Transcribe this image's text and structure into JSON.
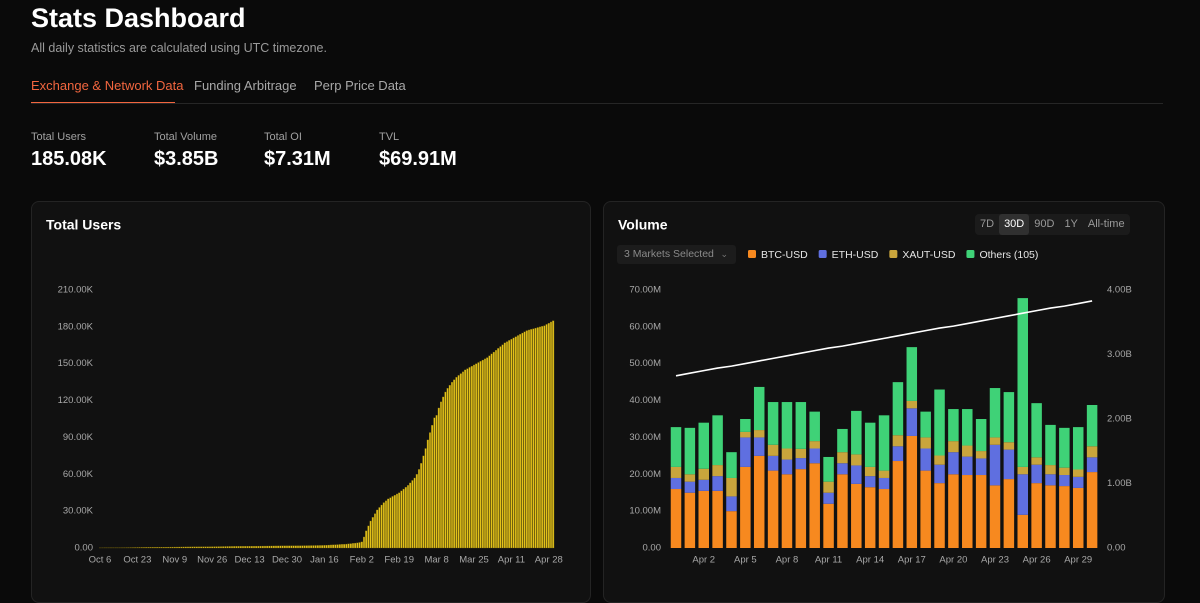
{
  "header": {
    "title": "Stats Dashboard",
    "subtitle": "All daily statistics are calculated using UTC timezone."
  },
  "tabs": [
    "Exchange & Network Data",
    "Funding Arbitrage",
    "Perp Price Data"
  ],
  "stats": [
    {
      "label": "Total Users",
      "value": "185.08K"
    },
    {
      "label": "Total Volume",
      "value": "$3.85B"
    },
    {
      "label": "Total OI",
      "value": "$7.31M"
    },
    {
      "label": "TVL",
      "value": "$69.91M"
    }
  ],
  "volume_controls": {
    "ranges": [
      "7D",
      "30D",
      "90D",
      "1Y",
      "All-time"
    ],
    "selected_range": "30D",
    "market_selector": "3 Markets Selected"
  },
  "chart_data": [
    {
      "type": "bar",
      "title": "Total Users",
      "color": "#e3c21a",
      "ylim": [
        0,
        210
      ],
      "yticks": [
        {
          "value": 0,
          "label": "0.00"
        },
        {
          "value": 30,
          "label": "30.00K"
        },
        {
          "value": 60,
          "label": "60.00K"
        },
        {
          "value": 90,
          "label": "90.00K"
        },
        {
          "value": 120,
          "label": "120.00K"
        },
        {
          "value": 150,
          "label": "150.00K"
        },
        {
          "value": 180,
          "label": "180.00K"
        },
        {
          "value": 210,
          "label": "210.00K"
        }
      ],
      "categories": [
        "Oct 6",
        null,
        null,
        null,
        null,
        null,
        null,
        null,
        null,
        null,
        null,
        null,
        null,
        null,
        null,
        null,
        null,
        "Oct 23",
        null,
        null,
        null,
        null,
        null,
        null,
        null,
        null,
        null,
        null,
        null,
        null,
        null,
        null,
        null,
        null,
        "Nov 9",
        null,
        null,
        null,
        null,
        null,
        null,
        null,
        null,
        null,
        null,
        null,
        null,
        null,
        null,
        null,
        null,
        "Nov 26",
        null,
        null,
        null,
        null,
        null,
        null,
        null,
        null,
        null,
        null,
        null,
        null,
        null,
        null,
        null,
        null,
        "Dec 13",
        null,
        null,
        null,
        null,
        null,
        null,
        null,
        null,
        null,
        null,
        null,
        null,
        null,
        null,
        null,
        null,
        "Dec 30",
        null,
        null,
        null,
        null,
        null,
        null,
        null,
        null,
        null,
        null,
        null,
        null,
        null,
        null,
        null,
        null,
        "Jan 16",
        null,
        null,
        null,
        null,
        null,
        null,
        null,
        null,
        null,
        null,
        null,
        null,
        null,
        null,
        null,
        null,
        "Feb 2",
        null,
        null,
        null,
        null,
        null,
        null,
        null,
        null,
        null,
        null,
        null,
        null,
        null,
        null,
        null,
        null,
        "Feb 19",
        null,
        null,
        null,
        null,
        null,
        null,
        null,
        null,
        null,
        null,
        null,
        null,
        null,
        null,
        null,
        null,
        "Mar 8",
        null,
        null,
        null,
        null,
        null,
        null,
        null,
        null,
        null,
        null,
        null,
        null,
        null,
        null,
        null,
        null,
        "Mar 25",
        null,
        null,
        null,
        null,
        null,
        null,
        null,
        null,
        null,
        null,
        null,
        null,
        null,
        null,
        null,
        null,
        "Apr 11",
        null,
        null,
        null,
        null,
        null,
        null,
        null,
        null,
        null,
        null,
        null,
        null,
        null,
        null,
        null,
        null,
        "Apr 28",
        null,
        null
      ],
      "values": [
        0.1,
        0.12,
        0.14,
        0.16,
        0.18,
        0.2,
        0.22,
        0.24,
        0.26,
        0.28,
        0.3,
        0.32,
        0.34,
        0.36,
        0.38,
        0.4,
        0.42,
        0.44,
        0.46,
        0.48,
        0.5,
        0.52,
        0.54,
        0.56,
        0.58,
        0.6,
        0.62,
        0.64,
        0.66,
        0.68,
        0.7,
        0.72,
        0.74,
        0.76,
        0.78,
        0.8,
        0.82,
        0.84,
        0.86,
        0.88,
        0.9,
        0.92,
        0.94,
        0.96,
        0.98,
        1,
        1.02,
        1.04,
        1.06,
        1.08,
        1.1,
        1.12,
        1.14,
        1.16,
        1.18,
        1.2,
        1.22,
        1.24,
        1.26,
        1.28,
        1.3,
        1.32,
        1.34,
        1.36,
        1.38,
        1.4,
        1.42,
        1.44,
        1.46,
        1.48,
        1.5,
        1.52,
        1.54,
        1.56,
        1.58,
        1.6,
        1.62,
        1.64,
        1.66,
        1.68,
        1.7,
        1.72,
        1.74,
        1.76,
        1.78,
        1.8,
        1.82,
        1.84,
        1.86,
        1.88,
        1.9,
        1.92,
        1.94,
        1.96,
        1.98,
        2,
        2.02,
        2.04,
        2.06,
        2.08,
        2.1,
        2.12,
        2.2,
        2.3,
        2.4,
        2.5,
        2.6,
        2.7,
        2.8,
        2.9,
        3,
        3.1,
        3.2,
        3.4,
        3.6,
        3.8,
        4,
        4.2,
        4.5,
        5,
        9,
        14,
        18,
        22,
        25,
        28,
        31,
        33,
        35,
        37,
        38.5,
        40,
        41,
        42,
        43,
        44,
        45,
        46.5,
        48,
        49.5,
        51,
        53,
        55,
        57,
        60,
        64,
        69,
        75,
        81,
        88,
        94,
        100,
        106,
        108,
        114,
        119,
        123,
        127,
        130,
        132.5,
        135,
        137,
        139,
        140.5,
        142,
        143.5,
        145,
        146,
        147,
        148,
        149,
        150,
        151,
        152,
        153,
        154,
        155,
        156.5,
        158,
        159.5,
        161,
        162.5,
        164,
        165.5,
        167,
        168,
        169,
        170,
        171,
        172,
        173,
        174,
        175,
        176,
        177,
        177.5,
        178,
        178.5,
        179,
        179.5,
        180,
        180.5,
        181,
        182,
        183,
        184,
        185
      ]
    },
    {
      "type": "stacked_bar",
      "title": "Volume",
      "ylim": [
        0,
        70
      ],
      "yticks": [
        {
          "value": 0,
          "label": "0.00"
        },
        {
          "value": 10,
          "label": "10.00M"
        },
        {
          "value": 20,
          "label": "20.00M"
        },
        {
          "value": 30,
          "label": "30.00M"
        },
        {
          "value": 40,
          "label": "40.00M"
        },
        {
          "value": 50,
          "label": "50.00M"
        },
        {
          "value": 60,
          "label": "60.00M"
        },
        {
          "value": 70,
          "label": "70.00M"
        }
      ],
      "y2lim": [
        0,
        4
      ],
      "y2ticks": [
        {
          "value": 0,
          "label": "0.00"
        },
        {
          "value": 1,
          "label": "1.00B"
        },
        {
          "value": 2,
          "label": "2.00B"
        },
        {
          "value": 3,
          "label": "3.00B"
        },
        {
          "value": 4,
          "label": "4.00B"
        }
      ],
      "categories": [
        null,
        null,
        "Apr 2",
        null,
        null,
        "Apr 5",
        null,
        null,
        "Apr 8",
        null,
        null,
        "Apr 11",
        null,
        null,
        "Apr 14",
        null,
        null,
        "Apr 17",
        null,
        null,
        "Apr 20",
        null,
        null,
        "Apr 23",
        null,
        null,
        "Apr 26",
        null,
        null,
        "Apr 29",
        null
      ],
      "series": [
        {
          "name": "BTC-USD",
          "color": "#f7891f",
          "values": [
            16,
            15,
            15.5,
            15.5,
            10,
            22,
            25,
            21,
            20,
            21.4,
            23,
            12,
            20,
            17.4,
            16.5,
            16,
            23.6,
            30.4,
            21,
            17.6,
            20,
            19.8,
            19.8,
            17,
            18.7,
            9,
            17.6,
            17,
            16.8,
            16.3,
            20.6
          ]
        },
        {
          "name": "ETH-USD",
          "color": "#5f6fe0",
          "values": [
            3,
            3,
            3,
            4,
            4,
            8,
            5,
            4,
            4,
            3,
            4,
            3,
            3,
            5,
            3,
            3,
            4,
            7.5,
            6,
            5,
            6,
            5,
            4.5,
            11,
            8,
            11,
            5,
            3,
            3,
            3,
            4
          ]
        },
        {
          "name": "XAUT-USD",
          "color": "#c9a53c",
          "values": [
            3,
            2,
            3,
            3,
            5,
            1.5,
            2,
            3,
            3,
            2.5,
            2,
            3,
            3,
            3,
            2.5,
            2,
            3,
            2,
            3,
            2.5,
            3,
            3,
            2,
            2,
            2,
            2,
            2,
            2.5,
            2,
            2,
            3
          ]
        },
        {
          "name": "Others (105)",
          "color": "#3fd277",
          "values": [
            10.8,
            12.6,
            12.5,
            13.5,
            7,
            3.5,
            11.7,
            11.6,
            12.6,
            12.7,
            8,
            6.7,
            6.3,
            11.8,
            12,
            15,
            14.4,
            14.6,
            7,
            17.9,
            8.7,
            9.9,
            8.7,
            13.4,
            13.6,
            45.8,
            14.7,
            10.9,
            10.8,
            11.5,
            11.2
          ]
        },
        {
          "type": "line",
          "axis": "y2",
          "color": "#ffffff",
          "values": [
            2.67,
            2.71,
            2.75,
            2.79,
            2.82,
            2.86,
            2.9,
            2.94,
            2.98,
            3.02,
            3.06,
            3.1,
            3.13,
            3.17,
            3.21,
            3.25,
            3.29,
            3.33,
            3.37,
            3.41,
            3.44,
            3.48,
            3.52,
            3.56,
            3.6,
            3.64,
            3.68,
            3.72,
            3.75,
            3.79,
            3.83
          ]
        }
      ]
    }
  ]
}
